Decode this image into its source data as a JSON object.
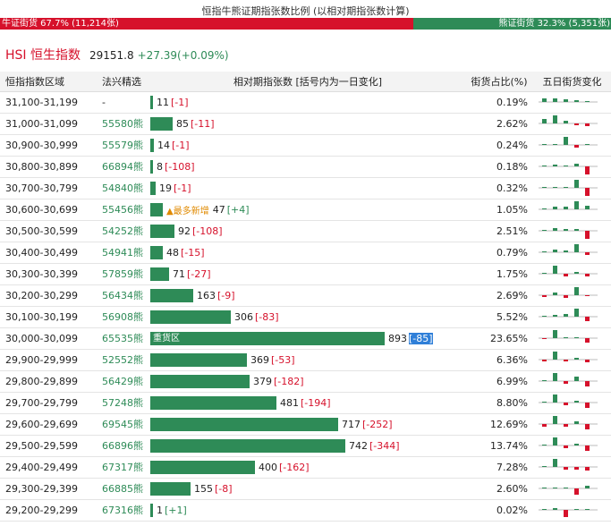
{
  "header": {
    "title": "恒指牛熊证期指张数比例 (以相对期指张数计算)",
    "bull_label": "牛证街货 67.7% (11,214张)",
    "bear_label": "熊证街货 32.3% (5,351张)",
    "bull_pct": 67.7,
    "colors": {
      "bull": "#d6112b",
      "bear": "#2e8b57"
    }
  },
  "hsi": {
    "name": "HSI 恒生指数",
    "value": "29151.8",
    "change": "+27.39(+0.09%)"
  },
  "table": {
    "headers": [
      "恒指指数区域",
      "法兴精选",
      "相对期指张数 [括号内为一日变化]",
      "街货占比(%)",
      "五日街货变化"
    ],
    "max_contracts": 893,
    "rows": [
      {
        "range": "31,100-31,199",
        "sg": "-",
        "contracts": 11,
        "change": "[-1]",
        "pct": "0.19%",
        "trend": [
          0.4,
          0.4,
          0.3,
          0.2,
          0
        ]
      },
      {
        "range": "31,000-31,099",
        "sg": "55580熊",
        "contracts": 85,
        "change": "[-11]",
        "pct": "2.62%",
        "trend": [
          0.5,
          0.9,
          0.3,
          -0.2,
          -0.3
        ]
      },
      {
        "range": "30,900-30,999",
        "sg": "55579熊",
        "contracts": 14,
        "change": "[-1]",
        "pct": "0.24%",
        "trend": [
          0,
          0,
          0.9,
          -0.3,
          0
        ]
      },
      {
        "range": "30,800-30,899",
        "sg": "66894熊",
        "contracts": 8,
        "change": "[-108]",
        "pct": "0.18%",
        "trend": [
          0,
          0.2,
          0.1,
          0.3,
          -0.9
        ]
      },
      {
        "range": "30,700-30,799",
        "sg": "54840熊",
        "contracts": 19,
        "change": "[-1]",
        "pct": "0.32%",
        "trend": [
          0,
          0,
          0.1,
          0.9,
          -0.9
        ]
      },
      {
        "range": "30,600-30,699",
        "sg": "55456熊",
        "contracts": 47,
        "change": "[+4]",
        "pct": "1.05%",
        "note": "▲最多新增",
        "trend": [
          0,
          0.3,
          0.3,
          0.9,
          0.4
        ]
      },
      {
        "range": "30,500-30,599",
        "sg": "54252熊",
        "contracts": 92,
        "change": "[-108]",
        "pct": "2.51%",
        "trend": [
          0,
          0.3,
          0.2,
          0.2,
          -0.9
        ]
      },
      {
        "range": "30,400-30,499",
        "sg": "54941熊",
        "contracts": 48,
        "change": "[-15]",
        "pct": "0.79%",
        "trend": [
          0,
          0.3,
          0.2,
          0.9,
          -0.3
        ]
      },
      {
        "range": "30,300-30,399",
        "sg": "57859熊",
        "contracts": 71,
        "change": "[-27]",
        "pct": "1.75%",
        "trend": [
          0,
          0.9,
          -0.3,
          0.2,
          -0.3
        ]
      },
      {
        "range": "30,200-30,299",
        "sg": "56434熊",
        "contracts": 163,
        "change": "[-9]",
        "pct": "2.69%",
        "trend": [
          -0.2,
          0.3,
          -0.3,
          0.9,
          -0.1
        ]
      },
      {
        "range": "30,100-30,199",
        "sg": "56908熊",
        "contracts": 306,
        "change": "[-83]",
        "pct": "5.52%",
        "trend": [
          0,
          0.2,
          0.3,
          0.9,
          -0.5
        ]
      },
      {
        "range": "30,000-30,099",
        "sg": "65535熊",
        "contracts": 893,
        "change": "[-85]",
        "pct": "23.65%",
        "label": "重货区",
        "highlight": true,
        "trend": [
          -0.1,
          0.9,
          0.1,
          0.1,
          -0.5
        ]
      },
      {
        "range": "29,900-29,999",
        "sg": "52552熊",
        "contracts": 369,
        "change": "[-53]",
        "pct": "6.36%",
        "trend": [
          -0.2,
          0.9,
          -0.2,
          0.2,
          -0.3
        ]
      },
      {
        "range": "29,800-29,899",
        "sg": "56429熊",
        "contracts": 379,
        "change": "[-182]",
        "pct": "6.99%",
        "trend": [
          0,
          0.9,
          -0.3,
          0.5,
          -0.6
        ]
      },
      {
        "range": "29,700-29,799",
        "sg": "57248熊",
        "contracts": 481,
        "change": "[-194]",
        "pct": "8.80%",
        "trend": [
          0,
          0.9,
          -0.3,
          0.2,
          -0.6
        ]
      },
      {
        "range": "29,600-29,699",
        "sg": "69545熊",
        "contracts": 717,
        "change": "[-252]",
        "pct": "12.69%",
        "trend": [
          -0.3,
          0.9,
          -0.3,
          0.3,
          -0.6
        ]
      },
      {
        "range": "29,500-29,599",
        "sg": "66896熊",
        "contracts": 742,
        "change": "[-344]",
        "pct": "13.74%",
        "trend": [
          0,
          0.9,
          -0.3,
          0.2,
          -0.6
        ]
      },
      {
        "range": "29,400-29,499",
        "sg": "67317熊",
        "contracts": 400,
        "change": "[-162]",
        "pct": "7.28%",
        "trend": [
          0,
          0.9,
          -0.3,
          -0.3,
          -0.4
        ]
      },
      {
        "range": "29,300-29,399",
        "sg": "66885熊",
        "contracts": 155,
        "change": "[-8]",
        "pct": "2.60%",
        "trend": [
          0,
          0.1,
          0.1,
          -0.7,
          0.3
        ]
      },
      {
        "range": "29,200-29,299",
        "sg": "67316熊",
        "contracts": 1,
        "change": "[+1]",
        "pct": "0.02%",
        "trend": [
          0,
          0.2,
          -0.8,
          0,
          0.1
        ]
      }
    ]
  }
}
